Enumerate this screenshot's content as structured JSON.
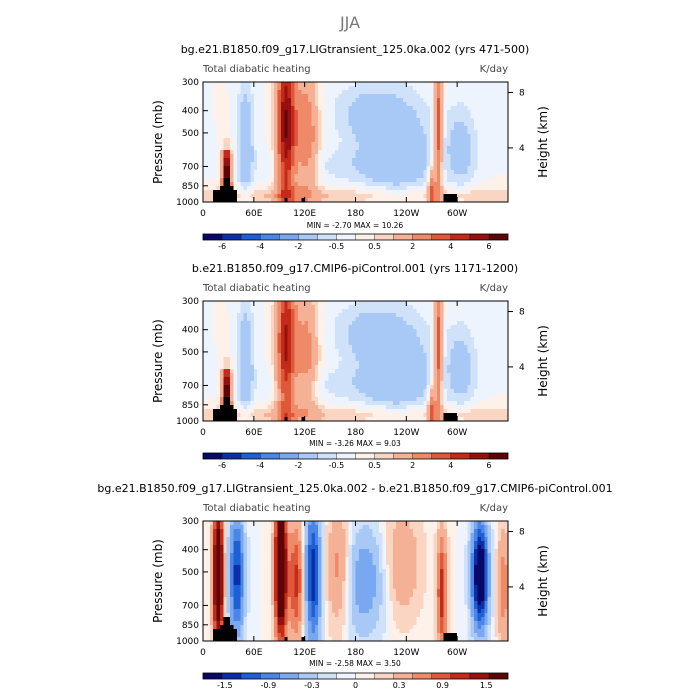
{
  "figure": {
    "season": "JJA"
  },
  "colormaps": {
    "full": [
      "#08086b",
      "#0a2fa8",
      "#1f5fd4",
      "#4a86e8",
      "#7aa8f0",
      "#a8c8f5",
      "#d0e2fa",
      "#eef4fd",
      "#fdf1ea",
      "#fad5c2",
      "#f5b195",
      "#ee8a68",
      "#e0583a",
      "#c42a1a",
      "#95100e",
      "#5e0606"
    ],
    "full_labels": [
      "-6",
      "-4",
      "-2",
      "-0.5",
      "0.5",
      "2",
      "4",
      "6"
    ],
    "diff": [
      "#08086b",
      "#0a2fa8",
      "#1f5fd4",
      "#4a86e8",
      "#7aa8f0",
      "#a8c8f5",
      "#d0e2fa",
      "#eef4fd",
      "#fdf1ea",
      "#fad5c2",
      "#f5b195",
      "#ee8a68",
      "#e0583a",
      "#c42a1a",
      "#95100e",
      "#5e0606"
    ],
    "diff_labels": [
      "-1.5",
      "-0.9",
      "-0.3",
      "0",
      "0.3",
      "0.9",
      "1.5"
    ]
  },
  "chart_data": [
    {
      "type": "heatmap",
      "title": "bg.e21.B1850.f09_g17.LIGtransient_125.0ka.002 (yrs 471-500)",
      "left_label": "Total diabatic heating",
      "units": "K/day",
      "xlabels": [
        "0",
        "60E",
        "120E",
        "180",
        "120W",
        "60W"
      ],
      "ylabel": "Pressure (mb)",
      "yticks": [
        "300",
        "400",
        "500",
        "700",
        "850",
        "1000"
      ],
      "right_label": "Height (km)",
      "right_ticks": [
        "8",
        "4"
      ],
      "stats": "MIN =   -2.70   MAX =   10.26",
      "min": -2.7,
      "max": 10.26,
      "colormap": "full"
    },
    {
      "type": "heatmap",
      "title": "b.e21.B1850.f09_g17.CMIP6-piControl.001 (yrs 1171-1200)",
      "left_label": "Total diabatic heating",
      "units": "K/day",
      "xlabels": [
        "0",
        "60E",
        "120E",
        "180",
        "120W",
        "60W"
      ],
      "ylabel": "Pressure (mb)",
      "yticks": [
        "300",
        "400",
        "500",
        "700",
        "850",
        "1000"
      ],
      "right_label": "Height (km)",
      "right_ticks": [
        "8",
        "4"
      ],
      "stats": "MIN =   -3.26   MAX =    9.03",
      "min": -3.26,
      "max": 9.03,
      "colormap": "full"
    },
    {
      "type": "heatmap",
      "title": "bg.e21.B1850.f09_g17.LIGtransient_125.0ka.002 - b.e21.B1850.f09_g17.CMIP6-piControl.001",
      "left_label": "Total diabatic heating",
      "units": "K/day",
      "xlabels": [
        "0",
        "60E",
        "120E",
        "180",
        "120W",
        "60W"
      ],
      "ylabel": "Pressure (mb)",
      "yticks": [
        "300",
        "400",
        "500",
        "700",
        "850",
        "1000"
      ],
      "right_label": "Height (km)",
      "right_ticks": [
        "8",
        "4"
      ],
      "stats": "MIN =   -2.58   MAX =    3.50",
      "min": -2.58,
      "max": 3.5,
      "colormap": "diff"
    }
  ]
}
